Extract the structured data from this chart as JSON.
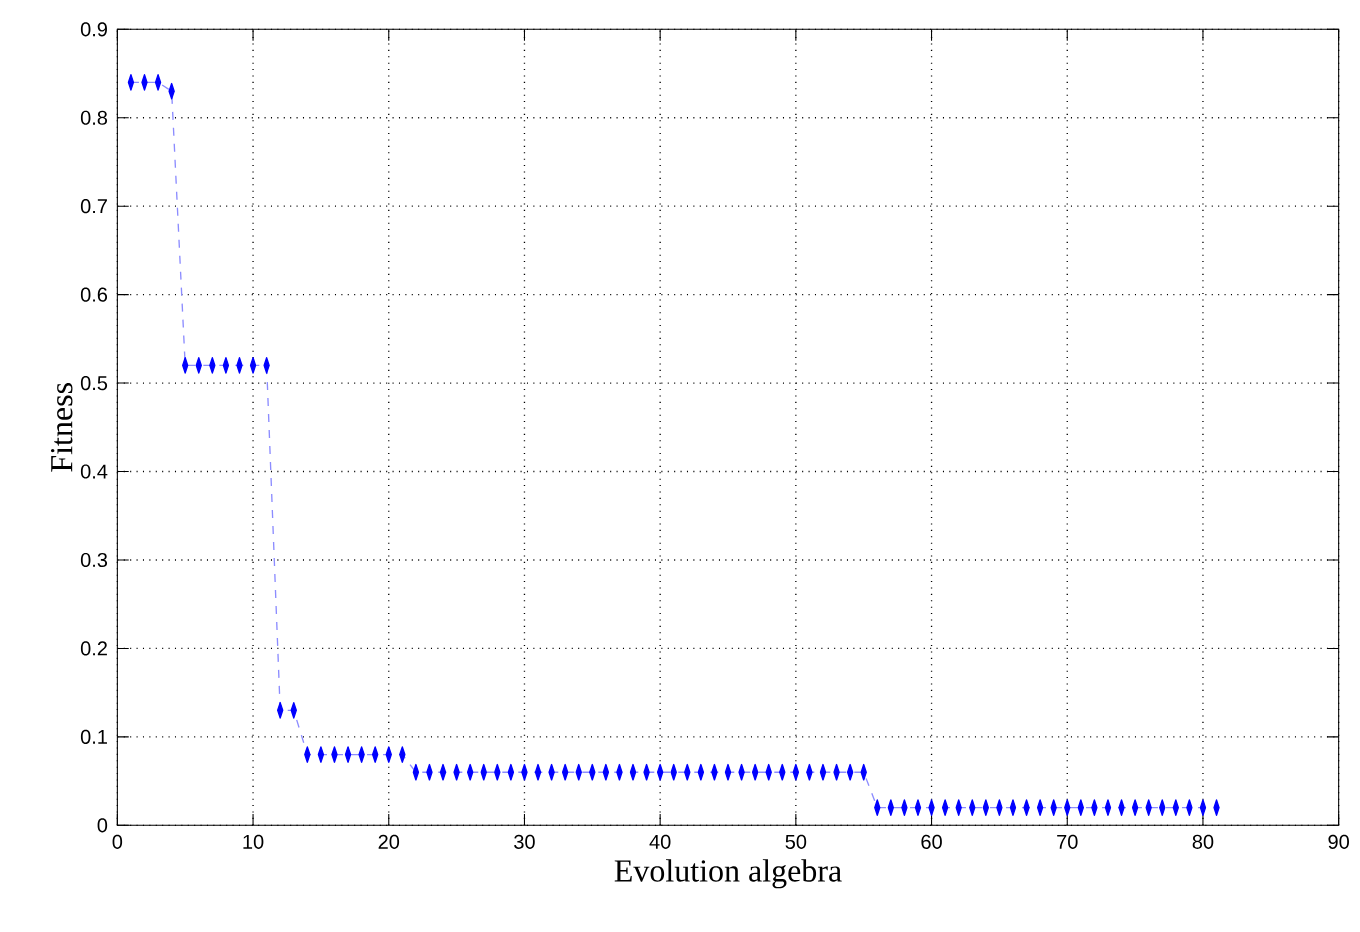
{
  "chart_data": {
    "type": "line",
    "xlabel": "Evolution algebra",
    "ylabel": "Fitness",
    "x": [
      1,
      2,
      3,
      4,
      5,
      6,
      7,
      8,
      9,
      10,
      11,
      12,
      13,
      14,
      15,
      16,
      17,
      18,
      19,
      20,
      21,
      22,
      23,
      24,
      25,
      26,
      27,
      28,
      29,
      30,
      31,
      32,
      33,
      34,
      35,
      36,
      37,
      38,
      39,
      40,
      41,
      42,
      43,
      44,
      45,
      46,
      47,
      48,
      49,
      50,
      51,
      52,
      53,
      54,
      55,
      56,
      57,
      58,
      59,
      60,
      61,
      62,
      63,
      64,
      65,
      66,
      67,
      68,
      69,
      70,
      71,
      72,
      73,
      74,
      75,
      76,
      77,
      78,
      79,
      80,
      81
    ],
    "series": [
      {
        "color": "#0000ff",
        "values": [
          0.84,
          0.84,
          0.84,
          0.83,
          0.52,
          0.52,
          0.52,
          0.52,
          0.52,
          0.52,
          0.52,
          0.13,
          0.13,
          0.08,
          0.08,
          0.08,
          0.08,
          0.08,
          0.08,
          0.08,
          0.08,
          0.06,
          0.06,
          0.06,
          0.06,
          0.06,
          0.06,
          0.06,
          0.06,
          0.06,
          0.06,
          0.06,
          0.06,
          0.06,
          0.06,
          0.06,
          0.06,
          0.06,
          0.06,
          0.06,
          0.06,
          0.06,
          0.06,
          0.06,
          0.06,
          0.06,
          0.06,
          0.06,
          0.06,
          0.06,
          0.06,
          0.06,
          0.06,
          0.06,
          0.06,
          0.02,
          0.02,
          0.02,
          0.02,
          0.02,
          0.02,
          0.02,
          0.02,
          0.02,
          0.02,
          0.02,
          0.02,
          0.02,
          0.02,
          0.02,
          0.02,
          0.02,
          0.02,
          0.02,
          0.02,
          0.02,
          0.02,
          0.02,
          0.02,
          0.02,
          0.02
        ]
      }
    ],
    "xlim": [
      0,
      90
    ],
    "ylim": [
      0,
      0.9
    ],
    "xticks": [
      0,
      10,
      20,
      30,
      40,
      50,
      60,
      70,
      80,
      90
    ],
    "yticks": [
      0,
      0.1,
      0.2,
      0.3,
      0.4,
      0.5,
      0.6,
      0.7,
      0.8,
      0.9
    ],
    "grid": true,
    "marker": "diamond",
    "line_style": "dashed"
  }
}
